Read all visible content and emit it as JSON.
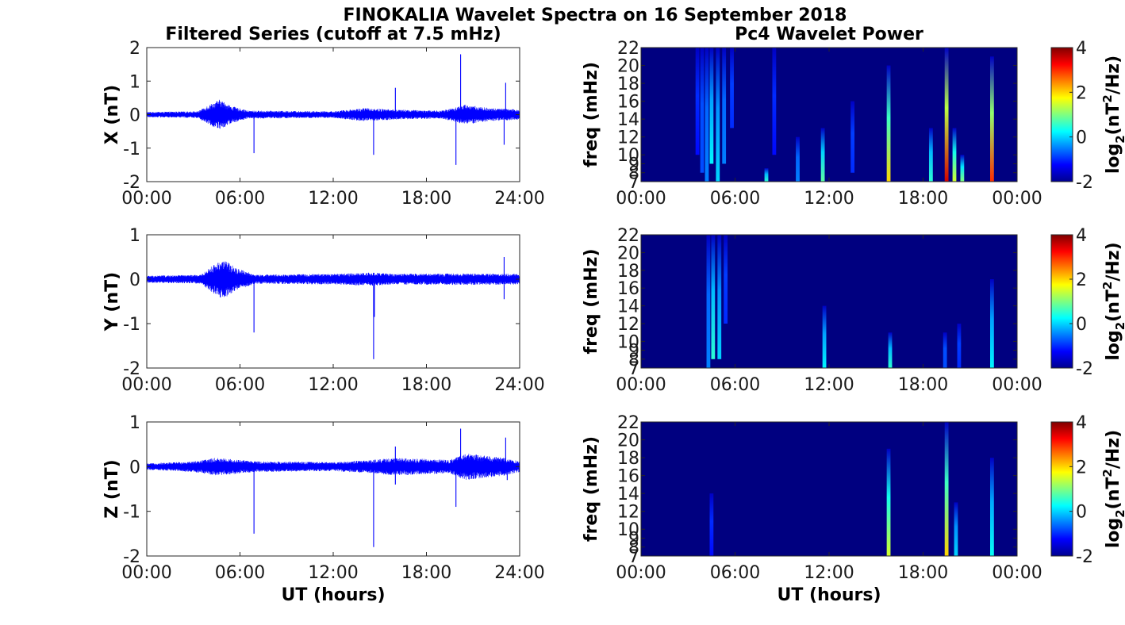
{
  "figure": {
    "title": "FINOKALIA Wavelet Spectra on 16 September 2018",
    "left_column_title": "Filtered Series (cutoff at 7.5 mHz)",
    "right_column_title": "Pc4 Wavelet Power",
    "x_label": "UT (hours)"
  },
  "chart_data": [
    {
      "type": "line",
      "component": "X",
      "ylabel": "X (nT)",
      "ylim": [
        -2,
        2
      ],
      "yticks": [
        "-2",
        "-1",
        "0",
        "1",
        "2"
      ],
      "xlim": [
        0,
        24
      ],
      "xticks": [
        "00:00",
        "06:00",
        "12:00",
        "18:00",
        "24:00"
      ],
      "line_color": "#0000ff",
      "envelope": [
        {
          "h": 0,
          "amp": 0.08
        },
        {
          "h": 3.3,
          "amp": 0.1
        },
        {
          "h": 4.0,
          "amp": 0.3
        },
        {
          "h": 4.7,
          "amp": 0.45
        },
        {
          "h": 5.5,
          "amp": 0.25
        },
        {
          "h": 6.5,
          "amp": 0.12
        },
        {
          "h": 12.0,
          "amp": 0.1
        },
        {
          "h": 14.0,
          "amp": 0.2
        },
        {
          "h": 16.0,
          "amp": 0.15
        },
        {
          "h": 19.0,
          "amp": 0.12
        },
        {
          "h": 20.5,
          "amp": 0.3
        },
        {
          "h": 22.0,
          "amp": 0.2
        },
        {
          "h": 24.0,
          "amp": 0.15
        }
      ],
      "spikes": [
        {
          "h": 6.9,
          "v": -1.15
        },
        {
          "h": 14.6,
          "v": -1.2
        },
        {
          "h": 16.0,
          "v": 0.8
        },
        {
          "h": 19.9,
          "v": -1.5
        },
        {
          "h": 20.2,
          "v": 1.8
        },
        {
          "h": 23.0,
          "v": -0.9
        },
        {
          "h": 23.1,
          "v": 0.95
        }
      ]
    },
    {
      "type": "line",
      "component": "Y",
      "ylabel": "Y (nT)",
      "ylim": [
        -2,
        1
      ],
      "yticks": [
        "-2",
        "-1",
        "0",
        "1"
      ],
      "xlim": [
        0,
        24
      ],
      "xticks": [
        "00:00",
        "06:00",
        "12:00",
        "18:00",
        "24:00"
      ],
      "line_color": "#0000ff",
      "envelope": [
        {
          "h": 0,
          "amp": 0.08
        },
        {
          "h": 3.5,
          "amp": 0.1
        },
        {
          "h": 4.2,
          "amp": 0.3
        },
        {
          "h": 4.9,
          "amp": 0.45
        },
        {
          "h": 5.8,
          "amp": 0.25
        },
        {
          "h": 7.0,
          "amp": 0.1
        },
        {
          "h": 12.0,
          "amp": 0.12
        },
        {
          "h": 14.5,
          "amp": 0.15
        },
        {
          "h": 16.0,
          "amp": 0.12
        },
        {
          "h": 20.0,
          "amp": 0.13
        },
        {
          "h": 24.0,
          "amp": 0.12
        }
      ],
      "spikes": [
        {
          "h": 6.9,
          "v": -1.2
        },
        {
          "h": 14.6,
          "v": -1.8
        },
        {
          "h": 14.65,
          "v": -0.85
        },
        {
          "h": 23.0,
          "v": 0.5
        },
        {
          "h": 23.0,
          "v": -0.45
        }
      ]
    },
    {
      "type": "line",
      "component": "Z",
      "ylabel": "Z (nT)",
      "ylim": [
        -2,
        1
      ],
      "yticks": [
        "-2",
        "-1",
        "0",
        "1"
      ],
      "xlim": [
        0,
        24
      ],
      "xticks": [
        "00:00",
        "06:00",
        "12:00",
        "18:00",
        "24:00"
      ],
      "line_color": "#0000ff",
      "envelope": [
        {
          "h": 0,
          "amp": 0.07
        },
        {
          "h": 3.0,
          "amp": 0.12
        },
        {
          "h": 4.5,
          "amp": 0.2
        },
        {
          "h": 7.0,
          "amp": 0.12
        },
        {
          "h": 12.0,
          "amp": 0.1
        },
        {
          "h": 14.5,
          "amp": 0.15
        },
        {
          "h": 16.0,
          "amp": 0.2
        },
        {
          "h": 19.5,
          "amp": 0.15
        },
        {
          "h": 20.5,
          "amp": 0.3
        },
        {
          "h": 23.0,
          "amp": 0.2
        },
        {
          "h": 24.0,
          "amp": 0.12
        }
      ],
      "spikes": [
        {
          "h": 6.9,
          "v": -1.5
        },
        {
          "h": 14.6,
          "v": -1.8
        },
        {
          "h": 16.0,
          "v": -0.4
        },
        {
          "h": 16.0,
          "v": 0.45
        },
        {
          "h": 19.9,
          "v": -0.9
        },
        {
          "h": 20.2,
          "v": 0.85
        },
        {
          "h": 23.1,
          "v": 0.65
        },
        {
          "h": 23.2,
          "v": -0.3
        }
      ]
    },
    {
      "type": "heatmap",
      "component": "X",
      "ylabel": "freq (mHz)",
      "ylim": [
        7,
        22
      ],
      "yticks": [
        "7",
        "8",
        "9",
        "10",
        "12",
        "14",
        "16",
        "18",
        "20",
        "22"
      ],
      "xlim": [
        0,
        24
      ],
      "xticks": [
        "00:00",
        "06:00",
        "12:00",
        "18:00",
        "00:00"
      ],
      "colorbar_label": "log2(nT2/Hz)",
      "clim": [
        -2,
        4
      ],
      "colorbar_ticks": [
        "-2",
        "0",
        "2",
        "4"
      ],
      "background_value": -2,
      "ridges": [
        {
          "h": 3.6,
          "fmin": 10,
          "fmax": 22,
          "p": -1.2
        },
        {
          "h": 3.9,
          "fmin": 8,
          "fmax": 22,
          "p": -0.8
        },
        {
          "h": 4.2,
          "fmin": 7,
          "fmax": 22,
          "p": -0.5
        },
        {
          "h": 4.5,
          "fmin": 9,
          "fmax": 22,
          "p": 0.2
        },
        {
          "h": 4.9,
          "fmin": 7,
          "fmax": 22,
          "p": 0.0
        },
        {
          "h": 5.3,
          "fmin": 9,
          "fmax": 22,
          "p": -0.5
        },
        {
          "h": 5.8,
          "fmin": 13,
          "fmax": 22,
          "p": -1.0
        },
        {
          "h": 8.0,
          "fmin": 7,
          "fmax": 8.5,
          "p": 0.5
        },
        {
          "h": 8.5,
          "fmin": 10,
          "fmax": 22,
          "p": -1.2
        },
        {
          "h": 10.0,
          "fmin": 7,
          "fmax": 12,
          "p": -0.5
        },
        {
          "h": 11.6,
          "fmin": 7,
          "fmax": 13,
          "p": 0.8
        },
        {
          "h": 13.5,
          "fmin": 8,
          "fmax": 16,
          "p": -1.0
        },
        {
          "h": 15.8,
          "fmin": 7,
          "fmax": 20,
          "p": 2.0
        },
        {
          "h": 18.5,
          "fmin": 7,
          "fmax": 13,
          "p": 0.5
        },
        {
          "h": 19.5,
          "fmin": 7,
          "fmax": 22,
          "p": 3.5
        },
        {
          "h": 20.0,
          "fmin": 7,
          "fmax": 13,
          "p": 1.5
        },
        {
          "h": 20.5,
          "fmin": 7,
          "fmax": 10,
          "p": 1.0
        },
        {
          "h": 22.4,
          "fmin": 7,
          "fmax": 21,
          "p": 3.0
        }
      ]
    },
    {
      "type": "heatmap",
      "component": "Y",
      "ylabel": "freq (mHz)",
      "ylim": [
        7,
        22
      ],
      "yticks": [
        "7",
        "8",
        "9",
        "10",
        "12",
        "14",
        "16",
        "18",
        "20",
        "22"
      ],
      "xlim": [
        0,
        24
      ],
      "xticks": [
        "00:00",
        "06:00",
        "12:00",
        "18:00",
        "00:00"
      ],
      "colorbar_label": "log2(nT2/Hz)",
      "clim": [
        -2,
        4
      ],
      "colorbar_ticks": [
        "-2",
        "0",
        "2",
        "4"
      ],
      "background_value": -2,
      "ridges": [
        {
          "h": 4.3,
          "fmin": 7,
          "fmax": 22,
          "p": -0.5
        },
        {
          "h": 4.6,
          "fmin": 8,
          "fmax": 22,
          "p": 0.5
        },
        {
          "h": 5.0,
          "fmin": 8,
          "fmax": 22,
          "p": 0.0
        },
        {
          "h": 5.4,
          "fmin": 12,
          "fmax": 22,
          "p": -1.0
        },
        {
          "h": 11.7,
          "fmin": 7,
          "fmax": 14,
          "p": 0.2
        },
        {
          "h": 15.9,
          "fmin": 7,
          "fmax": 11,
          "p": 0.5
        },
        {
          "h": 19.4,
          "fmin": 7,
          "fmax": 11,
          "p": -0.8
        },
        {
          "h": 20.3,
          "fmin": 7,
          "fmax": 12,
          "p": -1.0
        },
        {
          "h": 22.4,
          "fmin": 7,
          "fmax": 17,
          "p": 0.2
        }
      ]
    },
    {
      "type": "heatmap",
      "component": "Z",
      "ylabel": "freq (mHz)",
      "ylim": [
        7,
        22
      ],
      "yticks": [
        "7",
        "8",
        "9",
        "10",
        "12",
        "14",
        "16",
        "18",
        "20",
        "22"
      ],
      "xlim": [
        0,
        24
      ],
      "xticks": [
        "00:00",
        "06:00",
        "12:00",
        "18:00",
        "00:00"
      ],
      "colorbar_label": "log2(nT2/Hz)",
      "clim": [
        -2,
        4
      ],
      "colorbar_ticks": [
        "-2",
        "0",
        "2",
        "4"
      ],
      "background_value": -2,
      "ridges": [
        {
          "h": 4.5,
          "fmin": 7,
          "fmax": 14,
          "p": -1.2
        },
        {
          "h": 15.8,
          "fmin": 7,
          "fmax": 19,
          "p": 1.5
        },
        {
          "h": 19.5,
          "fmin": 7,
          "fmax": 22,
          "p": 2.0
        },
        {
          "h": 20.1,
          "fmin": 7,
          "fmax": 13,
          "p": 0.0
        },
        {
          "h": 22.4,
          "fmin": 7,
          "fmax": 18,
          "p": 0.3
        }
      ]
    }
  ]
}
